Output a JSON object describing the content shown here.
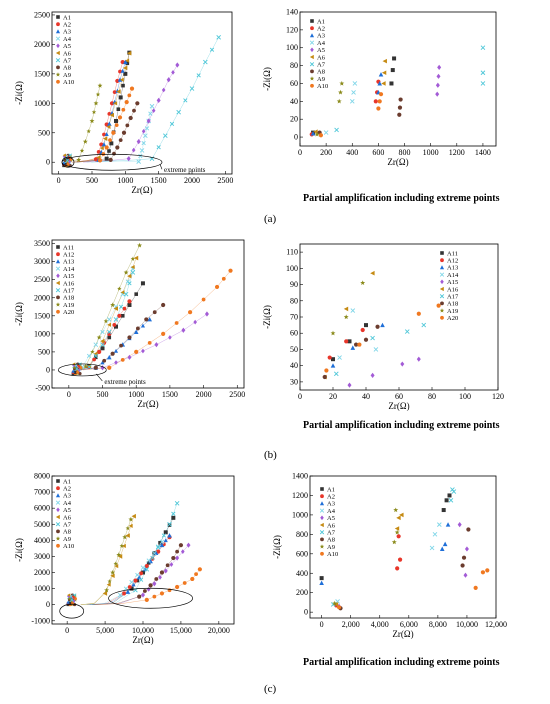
{
  "panel_labels": [
    "(a)",
    "(b)",
    "(c)"
  ],
  "captions": {
    "a": "Partial amplification including extreme points",
    "b": "Partial amplification including extreme points",
    "c": "Partial amplification including extreme points"
  },
  "chart_data": [
    {
      "id": "a-left",
      "type": "scatter",
      "xlabel": "Zr(Ω)",
      "ylabel": "-Zi(Ω)",
      "xlim": [
        -100,
        2600
      ],
      "ylim": [
        -200,
        2550
      ],
      "xticks": [
        0,
        500,
        1000,
        1500,
        2000,
        2500
      ],
      "yticks": [
        0,
        500,
        1000,
        1500,
        2000,
        2500
      ],
      "annotation": "extreme points",
      "series": [
        {
          "name": "A1",
          "x": [
            720,
            790,
            860,
            930,
            1000,
            1060
          ],
          "y": [
            60,
            320,
            700,
            1100,
            1500,
            1860
          ]
        },
        {
          "name": "A2",
          "x": [
            560,
            640,
            720,
            800,
            880,
            960
          ],
          "y": [
            50,
            300,
            640,
            1000,
            1380,
            1700
          ]
        },
        {
          "name": "A3",
          "x": [
            600,
            680,
            760,
            840,
            920,
            1000
          ],
          "y": [
            40,
            300,
            650,
            1020,
            1400,
            1700
          ]
        },
        {
          "name": "A4",
          "x": [
            1200,
            1250,
            1300,
            1350,
            1400
          ],
          "y": [
            10,
            200,
            450,
            700,
            950
          ]
        },
        {
          "name": "A5",
          "x": [
            1050,
            1200,
            1350,
            1500,
            1650,
            1780
          ],
          "y": [
            60,
            350,
            700,
            1050,
            1400,
            1650
          ]
        },
        {
          "name": "A6",
          "x": [
            600,
            700,
            800,
            900,
            1000,
            1060
          ],
          "y": [
            80,
            400,
            800,
            1200,
            1600,
            1850
          ]
        },
        {
          "name": "A7",
          "x": [
            1400,
            1600,
            1800,
            2000,
            2200,
            2400
          ],
          "y": [
            60,
            450,
            850,
            1250,
            1700,
            2120
          ]
        },
        {
          "name": "A8",
          "x": [
            780,
            880,
            980,
            1080,
            1180
          ],
          "y": [
            40,
            250,
            500,
            750,
            1000
          ]
        },
        {
          "name": "A9",
          "x": [
            300,
            400,
            500,
            560,
            620
          ],
          "y": [
            40,
            350,
            700,
            1000,
            1300
          ]
        },
        {
          "name": "A10",
          "x": [
            620,
            720,
            820,
            920,
            1020,
            1100
          ],
          "y": [
            30,
            250,
            500,
            760,
            1020,
            1250
          ]
        }
      ]
    },
    {
      "id": "a-right",
      "type": "scatter",
      "xlabel": "Zr(Ω)",
      "ylabel": "-Zi(Ω)",
      "xlim": [
        0,
        1500
      ],
      "ylim": [
        -10,
        140
      ],
      "xticks": [
        0,
        200,
        400,
        600,
        800,
        1000,
        1200,
        1400
      ],
      "yticks": [
        0,
        20,
        40,
        60,
        80,
        100,
        120,
        140
      ],
      "series": [
        {
          "name": "A1",
          "x": [
            100,
            700,
            710,
            720
          ],
          "y": [
            5,
            60,
            75,
            88
          ]
        },
        {
          "name": "A2",
          "x": [
            90,
            580,
            590,
            600
          ],
          "y": [
            3,
            40,
            50,
            62
          ]
        },
        {
          "name": "A3",
          "x": [
            100,
            600,
            610,
            620
          ],
          "y": [
            4,
            50,
            60,
            70
          ]
        },
        {
          "name": "A4",
          "x": [
            200,
            400,
            410,
            420
          ],
          "y": [
            5,
            40,
            50,
            60
          ]
        },
        {
          "name": "A5",
          "x": [
            1050,
            1055,
            1060,
            1065
          ],
          "y": [
            48,
            58,
            68,
            78
          ]
        },
        {
          "name": "A6",
          "x": [
            120,
            640,
            645,
            650
          ],
          "y": [
            6,
            60,
            72,
            85
          ]
        },
        {
          "name": "A7",
          "x": [
            280,
            1400,
            1400,
            1400
          ],
          "y": [
            8,
            60,
            72,
            100
          ]
        },
        {
          "name": "A8",
          "x": [
            150,
            760,
            765,
            770
          ],
          "y": [
            5,
            25,
            33,
            42
          ]
        },
        {
          "name": "A9",
          "x": [
            130,
            300,
            310,
            320
          ],
          "y": [
            3,
            40,
            50,
            60
          ]
        },
        {
          "name": "A10",
          "x": [
            160,
            600,
            610,
            620
          ],
          "y": [
            2,
            32,
            40,
            48
          ]
        }
      ]
    },
    {
      "id": "b-left",
      "type": "scatter",
      "xlabel": "Zr(Ω)",
      "ylabel": "-Zi(Ω)",
      "xlim": [
        -250,
        2600
      ],
      "ylim": [
        -500,
        3600
      ],
      "xticks": [
        0,
        500,
        1000,
        1500,
        2000,
        2500
      ],
      "yticks": [
        -500,
        0,
        500,
        1000,
        1500,
        2000,
        2500,
        3000,
        3500
      ],
      "annotation": "extreme points",
      "series": [
        {
          "name": "A11",
          "x": [
            300,
            500,
            700,
            900,
            1100
          ],
          "y": [
            100,
            600,
            1200,
            1800,
            2400
          ]
        },
        {
          "name": "A12",
          "x": [
            300,
            450,
            600,
            750,
            900
          ],
          "y": [
            80,
            500,
            1000,
            1500,
            1900
          ]
        },
        {
          "name": "A13",
          "x": [
            400,
            600,
            800,
            1000,
            1200
          ],
          "y": [
            60,
            350,
            700,
            1050,
            1400
          ]
        },
        {
          "name": "A14",
          "x": [
            200,
            400,
            600,
            800,
            950
          ],
          "y": [
            80,
            700,
            1400,
            2100,
            2800
          ]
        },
        {
          "name": "A15",
          "x": [
            500,
            900,
            1300,
            1700,
            2050
          ],
          "y": [
            60,
            350,
            700,
            1100,
            1550
          ]
        },
        {
          "name": "A16",
          "x": [
            300,
            500,
            700,
            900,
            1000
          ],
          "y": [
            100,
            800,
            1700,
            2600,
            3100
          ]
        },
        {
          "name": "A17",
          "x": [
            300,
            500,
            700,
            850,
            950
          ],
          "y": [
            80,
            700,
            1400,
            2100,
            2700
          ]
        },
        {
          "name": "A18",
          "x": [
            400,
            650,
            900,
            1150,
            1400
          ],
          "y": [
            60,
            450,
            900,
            1400,
            1800
          ]
        },
        {
          "name": "A19",
          "x": [
            250,
            450,
            650,
            850,
            1050
          ],
          "y": [
            100,
            900,
            1800,
            2700,
            3450
          ]
        },
        {
          "name": "A20",
          "x": [
            600,
            1000,
            1400,
            1800,
            2200,
            2400
          ],
          "y": [
            60,
            500,
            1000,
            1600,
            2300,
            2750
          ]
        }
      ]
    },
    {
      "id": "b-right",
      "type": "scatter",
      "xlabel": "Zr(Ω)",
      "ylabel": "-Zi(Ω)",
      "xlim": [
        0,
        120
      ],
      "ylim": [
        25,
        115
      ],
      "xticks": [
        0,
        20,
        40,
        60,
        80,
        100,
        120
      ],
      "yticks": [
        30,
        40,
        50,
        60,
        70,
        80,
        90,
        100,
        110
      ],
      "series": [
        {
          "name": "A11",
          "x": [
            20,
            30,
            40
          ],
          "y": [
            44,
            55,
            65
          ]
        },
        {
          "name": "A12",
          "x": [
            18,
            28,
            38
          ],
          "y": [
            45,
            55,
            62
          ]
        },
        {
          "name": "A13",
          "x": [
            20,
            32,
            50
          ],
          "y": [
            40,
            51,
            65
          ]
        },
        {
          "name": "A14",
          "x": [
            24,
            32,
            46
          ],
          "y": [
            45,
            74,
            50
          ]
        },
        {
          "name": "A15",
          "x": [
            30,
            44,
            62,
            72
          ],
          "y": [
            28,
            34,
            41,
            44
          ]
        },
        {
          "name": "A16",
          "x": [
            15,
            28,
            44
          ],
          "y": [
            33,
            75,
            97
          ]
        },
        {
          "name": "A17",
          "x": [
            22,
            44,
            65,
            75
          ],
          "y": [
            35,
            57,
            61,
            65
          ]
        },
        {
          "name": "A18",
          "x": [
            15,
            34,
            40,
            47
          ],
          "y": [
            33,
            53,
            56,
            64
          ]
        },
        {
          "name": "A19",
          "x": [
            20,
            28,
            38
          ],
          "y": [
            60,
            70,
            91
          ]
        },
        {
          "name": "A20",
          "x": [
            16,
            36,
            72,
            84
          ],
          "y": [
            37,
            53,
            72,
            77
          ]
        }
      ]
    },
    {
      "id": "c-left",
      "type": "scatter",
      "xlabel": "Zr(Ω)",
      "ylabel": "-Zi(Ω)",
      "xlim": [
        -2000,
        22000
      ],
      "ylim": [
        -1200,
        8000
      ],
      "xticks": [
        0,
        5000,
        10000,
        15000,
        20000
      ],
      "xticklabels": [
        "0",
        "5,000",
        "10,000",
        "15,000",
        "20,000"
      ],
      "yticks": [
        -1000,
        0,
        1000,
        2000,
        3000,
        4000,
        5000,
        6000,
        7000,
        8000
      ],
      "series": [
        {
          "name": "A1",
          "x": [
            8500,
            10000,
            11500,
            13000,
            14000
          ],
          "y": [
            1000,
            2000,
            3200,
            4500,
            5400
          ]
        },
        {
          "name": "A2",
          "x": [
            7500,
            9000,
            10500,
            12000,
            13500
          ],
          "y": [
            700,
            1500,
            2400,
            3300,
            4200
          ]
        },
        {
          "name": "A3",
          "x": [
            8000,
            9500,
            11000,
            12500,
            13500
          ],
          "y": [
            800,
            1700,
            2700,
            3700,
            4300
          ]
        },
        {
          "name": "A4",
          "x": [
            7000,
            8500,
            10000,
            11500,
            12500
          ],
          "y": [
            600,
            1400,
            2300,
            3200,
            3900
          ]
        },
        {
          "name": "A5",
          "x": [
            10000,
            11500,
            13000,
            14500,
            16000
          ],
          "y": [
            600,
            1300,
            2100,
            2900,
            3700
          ]
        },
        {
          "name": "A6",
          "x": [
            5000,
            6000,
            7000,
            8000,
            8800
          ],
          "y": [
            700,
            1800,
            3000,
            4300,
            5500
          ]
        },
        {
          "name": "A7",
          "x": [
            9000,
            10500,
            12000,
            13500,
            14500
          ],
          "y": [
            900,
            2200,
            3600,
            5000,
            6300
          ]
        },
        {
          "name": "A8",
          "x": [
            9500,
            11000,
            12500,
            14000,
            15000
          ],
          "y": [
            500,
            1200,
            2000,
            2900,
            3700
          ]
        },
        {
          "name": "A9",
          "x": [
            5200,
            6000,
            6800,
            7600,
            8400
          ],
          "y": [
            900,
            2000,
            3100,
            4200,
            5300
          ]
        },
        {
          "name": "A10",
          "x": [
            10500,
            12500,
            14500,
            16500,
            17500
          ],
          "y": [
            300,
            700,
            1100,
            1600,
            2200
          ]
        }
      ]
    },
    {
      "id": "c-right",
      "type": "scatter",
      "xlabel": "Zr(Ω)",
      "ylabel": "-Zi(Ω)",
      "xlim": [
        -800,
        12000
      ],
      "ylim": [
        -60,
        1400
      ],
      "xticks": [
        0,
        2000,
        4000,
        6000,
        8000,
        10000,
        12000
      ],
      "xticklabels": [
        "0",
        "2,000",
        "4,000",
        "6,000",
        "8,000",
        "10,000",
        "12,000"
      ],
      "yticks": [
        0,
        200,
        400,
        600,
        800,
        1000,
        1200,
        1400
      ],
      "series": [
        {
          "name": "A1",
          "x": [
            0,
            8800,
            8600,
            8400
          ],
          "y": [
            350,
            1200,
            1150,
            1050
          ]
        },
        {
          "name": "A2",
          "x": [
            1000,
            5200,
            5400,
            5300
          ],
          "y": [
            70,
            450,
            540,
            780
          ]
        },
        {
          "name": "A3",
          "x": [
            0,
            8300,
            8500,
            8700
          ],
          "y": [
            300,
            650,
            700,
            900
          ]
        },
        {
          "name": "A4",
          "x": [
            1100,
            7600,
            7800,
            8100
          ],
          "y": [
            110,
            660,
            800,
            900
          ]
        },
        {
          "name": "A5",
          "x": [
            1200,
            9900,
            10000,
            9500
          ],
          "y": [
            60,
            380,
            650,
            900
          ]
        },
        {
          "name": "A6",
          "x": [
            1000,
            5200,
            5300,
            5500
          ],
          "y": [
            80,
            860,
            970,
            1000
          ]
        },
        {
          "name": "A7",
          "x": [
            800,
            8900,
            9100,
            9000
          ],
          "y": [
            80,
            1150,
            1240,
            1260
          ]
        },
        {
          "name": "A8",
          "x": [
            1300,
            9700,
            9800,
            10100
          ],
          "y": [
            40,
            480,
            560,
            850
          ]
        },
        {
          "name": "A9",
          "x": [
            900,
            5000,
            5200,
            5100
          ],
          "y": [
            90,
            720,
            820,
            1050
          ]
        },
        {
          "name": "A10",
          "x": [
            1200,
            10600,
            11100,
            11400
          ],
          "y": [
            50,
            250,
            410,
            430
          ]
        }
      ]
    }
  ]
}
